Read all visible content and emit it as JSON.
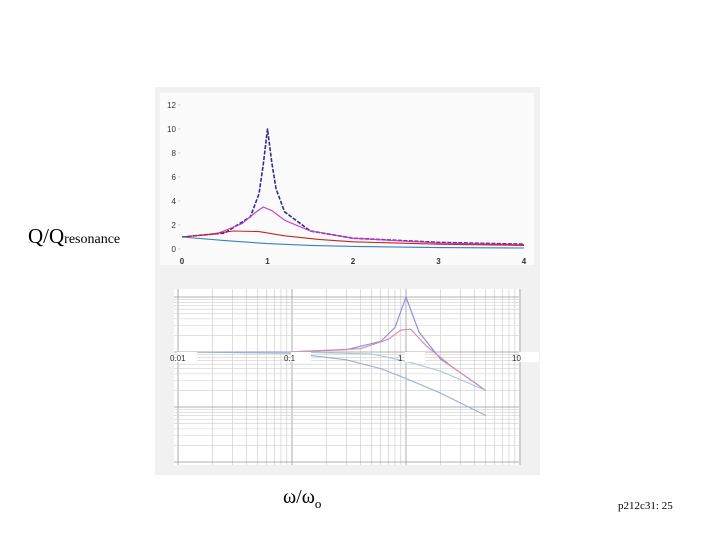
{
  "labels": {
    "y_main": "Q/Q",
    "y_sub": "resonance",
    "x_main": "ω/ω",
    "x_sub": "o",
    "slide_ref": "p212c31: 25"
  },
  "chart_data": [
    {
      "type": "line",
      "title": "",
      "xlabel": "ω/ωo",
      "ylabel": "Q/Qresonance",
      "xlim": [
        0,
        4
      ],
      "ylim": [
        0,
        12
      ],
      "x_ticks": [
        0,
        1,
        2,
        3,
        4
      ],
      "y_ticks": [
        0,
        2,
        4,
        6,
        8,
        10,
        12
      ],
      "grid": false,
      "series": [
        {
          "color": "#2b2f8f",
          "dash": true,
          "x": [
            0,
            0.5,
            0.8,
            0.9,
            0.95,
            1.0,
            1.05,
            1.1,
            1.2,
            1.5,
            2.0,
            3.0,
            4.0
          ],
          "y": [
            1.0,
            1.33,
            2.68,
            4.6,
            7.0,
            10.0,
            7.2,
            5.0,
            3.1,
            1.5,
            0.9,
            0.55,
            0.4
          ]
        },
        {
          "color": "#cc33cc",
          "x": [
            0,
            0.4,
            0.7,
            0.85,
            0.95,
            1.05,
            1.2,
            1.5,
            2.0,
            3.0,
            4.0
          ],
          "y": [
            1.0,
            1.25,
            2.1,
            3.0,
            3.5,
            3.2,
            2.4,
            1.5,
            0.9,
            0.5,
            0.35
          ]
        },
        {
          "color": "#cc2222",
          "x": [
            0,
            0.3,
            0.6,
            0.9,
            1.2,
            1.6,
            2.0,
            3.0,
            4.0
          ],
          "y": [
            1.0,
            1.2,
            1.5,
            1.45,
            1.1,
            0.8,
            0.6,
            0.4,
            0.3
          ]
        },
        {
          "color": "#3a7fbf",
          "x": [
            0,
            0.5,
            1.0,
            1.5,
            2.0,
            3.0,
            4.0
          ],
          "y": [
            1.0,
            0.7,
            0.45,
            0.3,
            0.22,
            0.12,
            0.08
          ]
        }
      ]
    },
    {
      "type": "line",
      "title": "",
      "xscale": "log",
      "yscale": "log",
      "xlim": [
        0.01,
        10
      ],
      "x_ticks": [
        0.01,
        0.1,
        1,
        10
      ],
      "x_tick_labels": [
        "0.01",
        "0.1",
        "1",
        "10"
      ],
      "grid": true,
      "series": [
        {
          "color": "#8a8ad8",
          "x": [
            0.01,
            0.1,
            0.3,
            0.6,
            0.8,
            1.0,
            1.3,
            2.0,
            3.0,
            5.0
          ],
          "y": [
            1.0,
            1.01,
            1.1,
            1.56,
            2.8,
            10.0,
            2.3,
            0.75,
            0.42,
            0.2
          ]
        },
        {
          "color": "#d88aa6",
          "x": [
            0.01,
            0.1,
            0.4,
            0.7,
            0.9,
            1.1,
            1.5,
            2.5,
            5.0
          ],
          "y": [
            1.0,
            1.01,
            1.15,
            1.7,
            2.5,
            2.6,
            1.3,
            0.55,
            0.2
          ]
        },
        {
          "color": "#a8c8d8",
          "x": [
            0.01,
            0.1,
            0.5,
            1.0,
            2.0,
            5.0
          ],
          "y": [
            1.0,
            1.0,
            0.92,
            0.68,
            0.45,
            0.2
          ]
        },
        {
          "color": "#9bb0c8",
          "x": [
            0.01,
            0.1,
            0.3,
            0.6,
            1.0,
            2.0,
            5.0
          ],
          "y": [
            1.0,
            0.95,
            0.72,
            0.5,
            0.33,
            0.18,
            0.07
          ]
        }
      ]
    }
  ]
}
